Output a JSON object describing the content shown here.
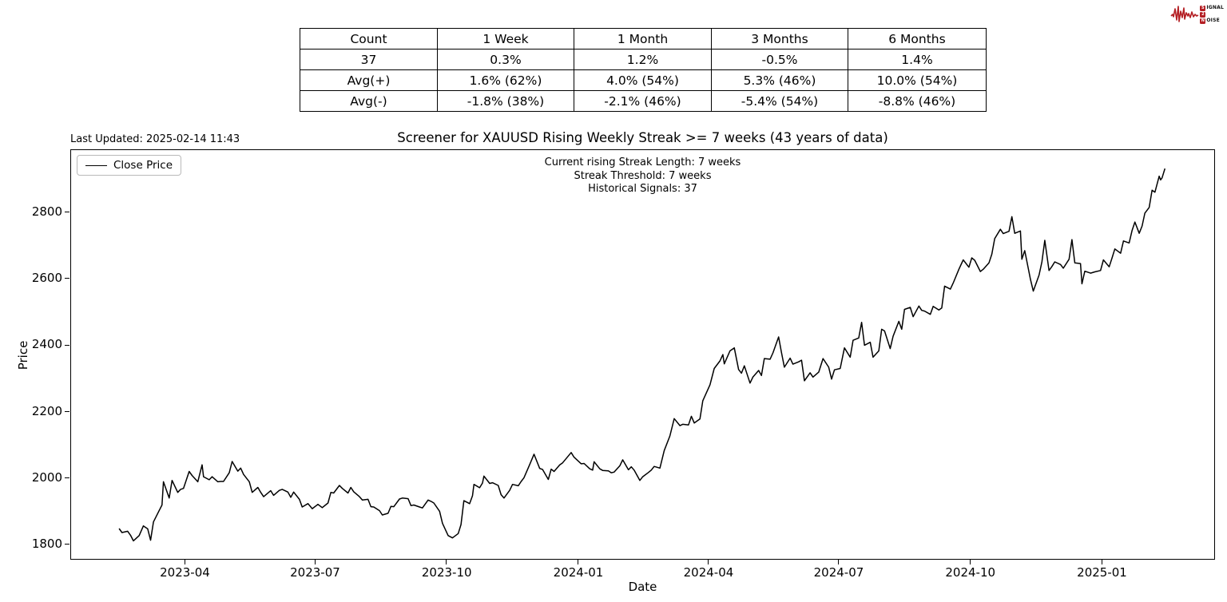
{
  "logo": {
    "signal_s": "S",
    "signal_rest": "IGNAL",
    "two": "2",
    "noise_n": "N",
    "noise_rest": "OISE",
    "color": "#b41f24"
  },
  "stats_table": {
    "headers": [
      "Count",
      "1 Week",
      "1 Month",
      "3 Months",
      "6 Months"
    ],
    "rows": [
      [
        "37",
        "0.3%",
        "1.2%",
        "-0.5%",
        "1.4%"
      ],
      [
        "Avg(+)",
        "1.6% (62%)",
        "4.0% (54%)",
        "5.3% (46%)",
        "10.0% (54%)"
      ],
      [
        "Avg(-)",
        "-1.8% (38%)",
        "-2.1% (46%)",
        "-5.4% (54%)",
        "-8.8% (46%)"
      ]
    ]
  },
  "chart": {
    "last_updated": "Last Updated: 2025-02-14 11:43",
    "title": "Screener for XAUUSD Rising Weekly Streak >= 7 weeks (43 years of data)",
    "annotation_line1": "Current rising Streak Length: 7 weeks",
    "annotation_line2": "Streak Threshold: 7 weeks",
    "annotation_line3": "Historical Signals: 37",
    "legend_label": "Close Price",
    "xlabel": "Date",
    "ylabel": "Price"
  },
  "chart_data": {
    "type": "line",
    "title": "Screener for XAUUSD Rising Weekly Streak >= 7 weeks (43 years of data)",
    "xlabel": "Date",
    "ylabel": "Price",
    "x_ticks": [
      "2023-04",
      "2023-07",
      "2023-10",
      "2024-01",
      "2024-04",
      "2024-07",
      "2024-10",
      "2025-01"
    ],
    "y_ticks": [
      1800,
      2000,
      2200,
      2400,
      2600,
      2800
    ],
    "ylim": [
      1754,
      2991
    ],
    "x_range": [
      "2023-02-14",
      "2025-02-14"
    ],
    "grid": false,
    "legend_position": "upper left",
    "series": [
      {
        "name": "Close Price",
        "color": "#000000",
        "points": [
          [
            "2023-02-14",
            1848
          ],
          [
            "2023-02-16",
            1836
          ],
          [
            "2023-02-20",
            1840
          ],
          [
            "2023-02-22",
            1828
          ],
          [
            "2023-02-24",
            1811
          ],
          [
            "2023-02-28",
            1827
          ],
          [
            "2023-03-03",
            1856
          ],
          [
            "2023-03-06",
            1847
          ],
          [
            "2023-03-08",
            1813
          ],
          [
            "2023-03-10",
            1868
          ],
          [
            "2023-03-14",
            1902
          ],
          [
            "2023-03-16",
            1919
          ],
          [
            "2023-03-17",
            1989
          ],
          [
            "2023-03-21",
            1940
          ],
          [
            "2023-03-23",
            1993
          ],
          [
            "2023-03-27",
            1957
          ],
          [
            "2023-03-29",
            1966
          ],
          [
            "2023-03-31",
            1969
          ],
          [
            "2023-04-04",
            2020
          ],
          [
            "2023-04-06",
            2008
          ],
          [
            "2023-04-10",
            1989
          ],
          [
            "2023-04-13",
            2040
          ],
          [
            "2023-04-14",
            2004
          ],
          [
            "2023-04-18",
            1995
          ],
          [
            "2023-04-20",
            2004
          ],
          [
            "2023-04-24",
            1989
          ],
          [
            "2023-04-26",
            1990
          ],
          [
            "2023-04-28",
            1990
          ],
          [
            "2023-05-02",
            2016
          ],
          [
            "2023-05-04",
            2050
          ],
          [
            "2023-05-08",
            2021
          ],
          [
            "2023-05-10",
            2030
          ],
          [
            "2023-05-12",
            2011
          ],
          [
            "2023-05-16",
            1989
          ],
          [
            "2023-05-18",
            1957
          ],
          [
            "2023-05-22",
            1972
          ],
          [
            "2023-05-24",
            1957
          ],
          [
            "2023-05-26",
            1944
          ],
          [
            "2023-05-31",
            1962
          ],
          [
            "2023-06-02",
            1948
          ],
          [
            "2023-06-06",
            1963
          ],
          [
            "2023-06-08",
            1966
          ],
          [
            "2023-06-12",
            1958
          ],
          [
            "2023-06-14",
            1942
          ],
          [
            "2023-06-16",
            1958
          ],
          [
            "2023-06-20",
            1936
          ],
          [
            "2023-06-22",
            1913
          ],
          [
            "2023-06-26",
            1923
          ],
          [
            "2023-06-29",
            1908
          ],
          [
            "2023-07-03",
            1921
          ],
          [
            "2023-07-06",
            1911
          ],
          [
            "2023-07-10",
            1925
          ],
          [
            "2023-07-12",
            1957
          ],
          [
            "2023-07-14",
            1955
          ],
          [
            "2023-07-18",
            1978
          ],
          [
            "2023-07-20",
            1969
          ],
          [
            "2023-07-24",
            1955
          ],
          [
            "2023-07-26",
            1972
          ],
          [
            "2023-07-28",
            1959
          ],
          [
            "2023-08-01",
            1944
          ],
          [
            "2023-08-03",
            1934
          ],
          [
            "2023-08-07",
            1936
          ],
          [
            "2023-08-09",
            1914
          ],
          [
            "2023-08-11",
            1913
          ],
          [
            "2023-08-15",
            1902
          ],
          [
            "2023-08-17",
            1889
          ],
          [
            "2023-08-21",
            1894
          ],
          [
            "2023-08-23",
            1915
          ],
          [
            "2023-08-25",
            1914
          ],
          [
            "2023-08-29",
            1937
          ],
          [
            "2023-08-31",
            1940
          ],
          [
            "2023-09-04",
            1938
          ],
          [
            "2023-09-06",
            1917
          ],
          [
            "2023-09-08",
            1919
          ],
          [
            "2023-09-12",
            1913
          ],
          [
            "2023-09-14",
            1910
          ],
          [
            "2023-09-18",
            1934
          ],
          [
            "2023-09-20",
            1930
          ],
          [
            "2023-09-22",
            1925
          ],
          [
            "2023-09-26",
            1900
          ],
          [
            "2023-09-28",
            1864
          ],
          [
            "2023-10-02",
            1827
          ],
          [
            "2023-10-05",
            1820
          ],
          [
            "2023-10-09",
            1833
          ],
          [
            "2023-10-11",
            1860
          ],
          [
            "2023-10-13",
            1932
          ],
          [
            "2023-10-17",
            1923
          ],
          [
            "2023-10-19",
            1947
          ],
          [
            "2023-10-20",
            1981
          ],
          [
            "2023-10-24",
            1971
          ],
          [
            "2023-10-26",
            1985
          ],
          [
            "2023-10-27",
            2006
          ],
          [
            "2023-10-31",
            1984
          ],
          [
            "2023-11-02",
            1986
          ],
          [
            "2023-11-06",
            1978
          ],
          [
            "2023-11-08",
            1950
          ],
          [
            "2023-11-10",
            1940
          ],
          [
            "2023-11-14",
            1963
          ],
          [
            "2023-11-16",
            1981
          ],
          [
            "2023-11-20",
            1977
          ],
          [
            "2023-11-22",
            1990
          ],
          [
            "2023-11-24",
            2001
          ],
          [
            "2023-11-28",
            2041
          ],
          [
            "2023-12-01",
            2072
          ],
          [
            "2023-12-05",
            2029
          ],
          [
            "2023-12-07",
            2026
          ],
          [
            "2023-12-11",
            1996
          ],
          [
            "2023-12-13",
            2027
          ],
          [
            "2023-12-15",
            2020
          ],
          [
            "2023-12-19",
            2040
          ],
          [
            "2023-12-21",
            2046
          ],
          [
            "2023-12-27",
            2077
          ],
          [
            "2023-12-29",
            2063
          ],
          [
            "2024-01-03",
            2043
          ],
          [
            "2024-01-05",
            2044
          ],
          [
            "2024-01-09",
            2028
          ],
          [
            "2024-01-11",
            2024
          ],
          [
            "2024-01-12",
            2049
          ],
          [
            "2024-01-16",
            2028
          ],
          [
            "2024-01-18",
            2023
          ],
          [
            "2024-01-22",
            2022
          ],
          [
            "2024-01-24",
            2016
          ],
          [
            "2024-01-26",
            2018
          ],
          [
            "2024-01-30",
            2037
          ],
          [
            "2024-02-01",
            2055
          ],
          [
            "2024-02-05",
            2025
          ],
          [
            "2024-02-07",
            2034
          ],
          [
            "2024-02-09",
            2024
          ],
          [
            "2024-02-13",
            1993
          ],
          [
            "2024-02-15",
            2004
          ],
          [
            "2024-02-19",
            2017
          ],
          [
            "2024-02-21",
            2024
          ],
          [
            "2024-02-23",
            2035
          ],
          [
            "2024-02-27",
            2030
          ],
          [
            "2024-03-01",
            2083
          ],
          [
            "2024-03-05",
            2127
          ],
          [
            "2024-03-08",
            2179
          ],
          [
            "2024-03-12",
            2158
          ],
          [
            "2024-03-14",
            2162
          ],
          [
            "2024-03-18",
            2160
          ],
          [
            "2024-03-20",
            2186
          ],
          [
            "2024-03-22",
            2166
          ],
          [
            "2024-03-26",
            2178
          ],
          [
            "2024-03-28",
            2233
          ],
          [
            "2024-04-02",
            2281
          ],
          [
            "2024-04-05",
            2330
          ],
          [
            "2024-04-09",
            2353
          ],
          [
            "2024-04-11",
            2372
          ],
          [
            "2024-04-12",
            2344
          ],
          [
            "2024-04-16",
            2383
          ],
          [
            "2024-04-19",
            2392
          ],
          [
            "2024-04-22",
            2327
          ],
          [
            "2024-04-24",
            2316
          ],
          [
            "2024-04-26",
            2338
          ],
          [
            "2024-04-30",
            2286
          ],
          [
            "2024-05-02",
            2304
          ],
          [
            "2024-05-06",
            2324
          ],
          [
            "2024-05-08",
            2309
          ],
          [
            "2024-05-10",
            2360
          ],
          [
            "2024-05-14",
            2358
          ],
          [
            "2024-05-16",
            2377
          ],
          [
            "2024-05-20",
            2425
          ],
          [
            "2024-05-22",
            2378
          ],
          [
            "2024-05-24",
            2334
          ],
          [
            "2024-05-28",
            2361
          ],
          [
            "2024-05-30",
            2343
          ],
          [
            "2024-06-03",
            2350
          ],
          [
            "2024-06-05",
            2355
          ],
          [
            "2024-06-07",
            2293
          ],
          [
            "2024-06-11",
            2317
          ],
          [
            "2024-06-13",
            2304
          ],
          [
            "2024-06-17",
            2319
          ],
          [
            "2024-06-20",
            2360
          ],
          [
            "2024-06-24",
            2334
          ],
          [
            "2024-06-26",
            2298
          ],
          [
            "2024-06-28",
            2326
          ],
          [
            "2024-07-02",
            2330
          ],
          [
            "2024-07-05",
            2392
          ],
          [
            "2024-07-09",
            2364
          ],
          [
            "2024-07-11",
            2415
          ],
          [
            "2024-07-15",
            2422
          ],
          [
            "2024-07-17",
            2469
          ],
          [
            "2024-07-19",
            2400
          ],
          [
            "2024-07-23",
            2409
          ],
          [
            "2024-07-25",
            2364
          ],
          [
            "2024-07-29",
            2383
          ],
          [
            "2024-07-31",
            2448
          ],
          [
            "2024-08-02",
            2443
          ],
          [
            "2024-08-06",
            2390
          ],
          [
            "2024-08-08",
            2427
          ],
          [
            "2024-08-12",
            2472
          ],
          [
            "2024-08-14",
            2448
          ],
          [
            "2024-08-16",
            2508
          ],
          [
            "2024-08-20",
            2514
          ],
          [
            "2024-08-22",
            2486
          ],
          [
            "2024-08-26",
            2518
          ],
          [
            "2024-08-28",
            2505
          ],
          [
            "2024-08-30",
            2503
          ],
          [
            "2024-09-03",
            2493
          ],
          [
            "2024-09-05",
            2517
          ],
          [
            "2024-09-09",
            2506
          ],
          [
            "2024-09-11",
            2512
          ],
          [
            "2024-09-13",
            2578
          ],
          [
            "2024-09-17",
            2569
          ],
          [
            "2024-09-19",
            2587
          ],
          [
            "2024-09-23",
            2629
          ],
          [
            "2024-09-26",
            2657
          ],
          [
            "2024-09-30",
            2635
          ],
          [
            "2024-10-02",
            2663
          ],
          [
            "2024-10-04",
            2656
          ],
          [
            "2024-10-08",
            2622
          ],
          [
            "2024-10-10",
            2629
          ],
          [
            "2024-10-14",
            2648
          ],
          [
            "2024-10-16",
            2674
          ],
          [
            "2024-10-18",
            2721
          ],
          [
            "2024-10-22",
            2749
          ],
          [
            "2024-10-24",
            2736
          ],
          [
            "2024-10-28",
            2743
          ],
          [
            "2024-10-30",
            2787
          ],
          [
            "2024-11-01",
            2737
          ],
          [
            "2024-11-05",
            2744
          ],
          [
            "2024-11-06",
            2659
          ],
          [
            "2024-11-08",
            2685
          ],
          [
            "2024-11-12",
            2598
          ],
          [
            "2024-11-14",
            2563
          ],
          [
            "2024-11-18",
            2611
          ],
          [
            "2024-11-20",
            2651
          ],
          [
            "2024-11-22",
            2716
          ],
          [
            "2024-11-25",
            2625
          ],
          [
            "2024-11-27",
            2637
          ],
          [
            "2024-11-29",
            2651
          ],
          [
            "2024-12-03",
            2643
          ],
          [
            "2024-12-05",
            2632
          ],
          [
            "2024-12-09",
            2659
          ],
          [
            "2024-12-11",
            2718
          ],
          [
            "2024-12-13",
            2648
          ],
          [
            "2024-12-17",
            2646
          ],
          [
            "2024-12-18",
            2585
          ],
          [
            "2024-12-20",
            2623
          ],
          [
            "2024-12-24",
            2617
          ],
          [
            "2024-12-27",
            2621
          ],
          [
            "2024-12-31",
            2625
          ],
          [
            "2025-01-02",
            2657
          ],
          [
            "2025-01-06",
            2636
          ],
          [
            "2025-01-08",
            2662
          ],
          [
            "2025-01-10",
            2690
          ],
          [
            "2025-01-14",
            2677
          ],
          [
            "2025-01-16",
            2714
          ],
          [
            "2025-01-20",
            2708
          ],
          [
            "2025-01-22",
            2745
          ],
          [
            "2025-01-24",
            2771
          ],
          [
            "2025-01-27",
            2737
          ],
          [
            "2025-01-29",
            2759
          ],
          [
            "2025-01-31",
            2798
          ],
          [
            "2025-02-03",
            2815
          ],
          [
            "2025-02-05",
            2867
          ],
          [
            "2025-02-07",
            2861
          ],
          [
            "2025-02-10",
            2909
          ],
          [
            "2025-02-11",
            2898
          ],
          [
            "2025-02-12",
            2904
          ],
          [
            "2025-02-14",
            2932
          ]
        ]
      }
    ]
  }
}
